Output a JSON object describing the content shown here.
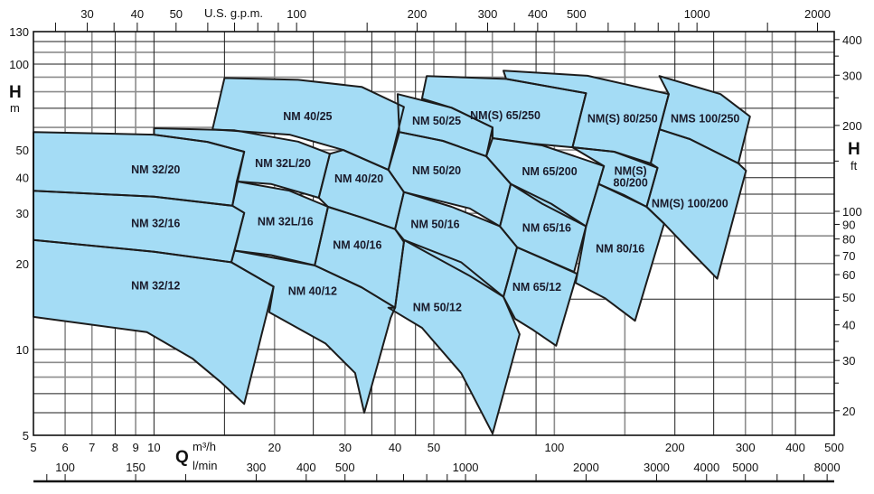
{
  "chart_data": {
    "type": "area",
    "x_scale": "log",
    "y_scale": "log",
    "xlim": [
      5,
      500
    ],
    "ylim": [
      5,
      130
    ],
    "grid": true,
    "x_axis": {
      "symbol": "Q",
      "unit": "m³/h",
      "ticks": [
        5,
        6,
        7,
        8,
        9,
        10,
        20,
        30,
        40,
        50,
        100,
        200,
        300,
        400,
        500
      ]
    },
    "x_axis_lmin": {
      "unit": "l/min",
      "ticks": [
        100,
        150,
        300,
        400,
        500,
        1000,
        2000,
        3000,
        4000,
        5000,
        8000
      ],
      "minor_ticks": [
        90,
        200,
        600,
        700,
        800,
        900,
        1500,
        6000,
        7000
      ]
    },
    "x_axis_gpm": {
      "unit": "U.S. g.p.m.",
      "ticks": [
        30,
        40,
        50,
        100,
        200,
        300,
        400,
        500,
        1000,
        2000
      ],
      "minor_ticks": [
        25,
        35,
        60,
        70,
        80,
        90,
        150,
        250,
        350,
        600,
        700,
        800,
        900,
        1500
      ]
    },
    "y_axis": {
      "symbol": "H",
      "unit": "m",
      "ticks": [
        5,
        10,
        20,
        30,
        40,
        50,
        100,
        130
      ]
    },
    "y_axis_ft": {
      "symbol": "H",
      "unit": "ft",
      "ticks": [
        20,
        30,
        40,
        50,
        60,
        70,
        80,
        90,
        100,
        200,
        300,
        400
      ],
      "minor_ticks": [
        25,
        35,
        45,
        150,
        250,
        350
      ]
    },
    "grid_lines": {
      "dark_q": [
        8,
        10,
        15,
        25,
        35,
        45,
        60,
        90,
        200,
        250,
        400
      ],
      "light_q": [
        6,
        7,
        9,
        20,
        30,
        40,
        50,
        70,
        100,
        150,
        300,
        350
      ],
      "dark_h": [
        6,
        7,
        10,
        15,
        35,
        40,
        45,
        70,
        100,
        120
      ],
      "light_h": [
        8,
        9,
        20,
        25,
        30,
        50,
        60,
        80,
        90,
        110
      ]
    },
    "colors": {
      "fill": "#a4dcf5",
      "outline": "#1c1c1c",
      "grid_dark": "#1e1e1e",
      "grid_light": "#8c8c8c"
    },
    "series": [
      {
        "name": "NM 32/20",
        "label": [
          10.1,
          42.6
        ],
        "points": [
          [
            5,
            57.8
          ],
          [
            10,
            56.6
          ],
          [
            13.6,
            53.4
          ],
          [
            16.8,
            49.3
          ],
          [
            15.7,
            31.9
          ],
          [
            10,
            34.3
          ],
          [
            5,
            36
          ]
        ]
      },
      {
        "name": "NM 32/16",
        "label": [
          10.1,
          27.6
        ],
        "points": [
          [
            5,
            36
          ],
          [
            10,
            34.3
          ],
          [
            15.7,
            31.9
          ],
          [
            16.8,
            30.1
          ],
          [
            15.6,
            20.2
          ],
          [
            10,
            22
          ],
          [
            5,
            24.2
          ]
        ]
      },
      {
        "name": "NM 32/12",
        "label": [
          10.1,
          16.7
        ],
        "points": [
          [
            5,
            24.2
          ],
          [
            10,
            22
          ],
          [
            15.6,
            20.2
          ],
          [
            19.9,
            16.6
          ],
          [
            16.8,
            6.44
          ],
          [
            14.7,
            7.67
          ],
          [
            12.5,
            9.27
          ],
          [
            9.6,
            11.5
          ],
          [
            5,
            13
          ]
        ]
      },
      {
        "name": "NM 32L/20",
        "label": [
          21,
          44.9
        ],
        "points": [
          [
            10,
            59.6
          ],
          [
            15.9,
            58.6
          ],
          [
            22.9,
            53.5
          ],
          [
            27.5,
            48.5
          ],
          [
            25.8,
            34
          ],
          [
            19.6,
            38
          ],
          [
            16.1,
            38.8
          ],
          [
            16.8,
            49.3
          ],
          [
            13.6,
            53.4
          ],
          [
            10,
            56.6
          ]
        ]
      },
      {
        "name": "NM 32L/16",
        "label": [
          21.3,
          28
        ],
        "points": [
          [
            16.1,
            38.8
          ],
          [
            21.8,
            36
          ],
          [
            27.2,
            31.6
          ],
          [
            25.2,
            19.7
          ],
          [
            19.6,
            21.4
          ],
          [
            15.9,
            22.2
          ],
          [
            16.8,
            30.1
          ],
          [
            15.7,
            31.9
          ]
        ]
      },
      {
        "name": "NM 40/25",
        "label": [
          24.2,
          65.5
        ],
        "points": [
          [
            15,
            89.4
          ],
          [
            22.9,
            88.1
          ],
          [
            33,
            83.2
          ],
          [
            42.1,
            70.8
          ],
          [
            38.5,
            42.6
          ],
          [
            29.7,
            50
          ],
          [
            21.8,
            56.6
          ],
          [
            14,
            59.1
          ]
        ]
      },
      {
        "name": "NM 40/20",
        "label": [
          32.5,
          39.6
        ],
        "points": [
          [
            27.5,
            48.5
          ],
          [
            29.7,
            50
          ],
          [
            38.5,
            42.6
          ],
          [
            42.1,
            35.6
          ],
          [
            40,
            26.4
          ],
          [
            33,
            29
          ],
          [
            27.2,
            31.6
          ],
          [
            25.8,
            34
          ]
        ]
      },
      {
        "name": "NM 40/16",
        "label": [
          32.2,
          23.2
        ],
        "points": [
          [
            27.2,
            31.6
          ],
          [
            33,
            29
          ],
          [
            40,
            26.4
          ],
          [
            42.1,
            23.8
          ],
          [
            40,
            14
          ],
          [
            33,
            16.5
          ],
          [
            25.2,
            19.7
          ]
        ]
      },
      {
        "name": "NM 40/12",
        "label": [
          24.9,
          16
        ],
        "points": [
          [
            15.9,
            22.2
          ],
          [
            25.2,
            19.7
          ],
          [
            33,
            16.5
          ],
          [
            40,
            14
          ],
          [
            39,
            12.9
          ],
          [
            33.5,
            6
          ],
          [
            31.8,
            8.26
          ],
          [
            26.8,
            10.5
          ],
          [
            19.4,
            13.5
          ],
          [
            19.9,
            16.6
          ],
          [
            15.6,
            20.2
          ]
        ]
      },
      {
        "name": "NM 50/25",
        "label": [
          50.8,
          63.1
        ],
        "points": [
          [
            40.6,
            78.5
          ],
          [
            55.4,
            70.3
          ],
          [
            70.1,
            60
          ],
          [
            67.6,
            47.5
          ],
          [
            52.7,
            53.8
          ],
          [
            41,
            57.8
          ]
        ]
      },
      {
        "name": "NM 50/20",
        "label": [
          50.8,
          42.3
        ],
        "points": [
          [
            41,
            57.8
          ],
          [
            52.7,
            53.8
          ],
          [
            67.6,
            47.5
          ],
          [
            77.8,
            38
          ],
          [
            73.1,
            27
          ],
          [
            61.5,
            31.2
          ],
          [
            42.1,
            35.6
          ],
          [
            38.5,
            42.6
          ]
        ]
      },
      {
        "name": "NM 50/16",
        "label": [
          50.4,
          27.4
        ],
        "points": [
          [
            42.1,
            35.6
          ],
          [
            55.4,
            31.6
          ],
          [
            73.1,
            27
          ],
          [
            80.7,
            22.8
          ],
          [
            74.6,
            15.3
          ],
          [
            61.5,
            18.1
          ],
          [
            42.1,
            24.2
          ],
          [
            40,
            26.4
          ]
        ]
      },
      {
        "name": "NM 50/12",
        "label": [
          51,
          14
        ],
        "points": [
          [
            42.1,
            24.2
          ],
          [
            58.5,
            20.2
          ],
          [
            74.6,
            15.3
          ],
          [
            81.9,
            11.3
          ],
          [
            70.1,
            5.07
          ],
          [
            58.5,
            8.26
          ],
          [
            46.7,
            11.9
          ],
          [
            38.5,
            14
          ],
          [
            40,
            14
          ],
          [
            42.1,
            23.8
          ]
        ]
      },
      {
        "name": "NM(S) 65/250",
        "label": [
          75.4,
          65.9
        ],
        "points": [
          [
            48,
            90.8
          ],
          [
            75.8,
            88.7
          ],
          [
            120,
            79.1
          ],
          [
            111,
            51.1
          ],
          [
            88.5,
            52.6
          ],
          [
            70.1,
            55
          ],
          [
            70.1,
            60
          ],
          [
            55.4,
            70.3
          ],
          [
            46.7,
            75.7
          ]
        ]
      },
      {
        "name": "NM 65/200",
        "label": [
          97.3,
          42
        ],
        "points": [
          [
            70.1,
            55
          ],
          [
            93.3,
            51.9
          ],
          [
            133,
            43.9
          ],
          [
            120,
            27
          ],
          [
            93.3,
            32.4
          ],
          [
            77.8,
            38
          ],
          [
            67.6,
            47.5
          ]
        ]
      },
      {
        "name": "NM 65/16",
        "label": [
          95.7,
          26.6
        ],
        "points": [
          [
            77.8,
            38
          ],
          [
            98.2,
            32.4
          ],
          [
            120,
            27
          ],
          [
            112,
            18.7
          ],
          [
            93.3,
            20.9
          ],
          [
            80.7,
            22.8
          ],
          [
            73.1,
            27
          ]
        ]
      },
      {
        "name": "NM 65/12",
        "label": [
          90.4,
          16.5
        ],
        "points": [
          [
            80.7,
            22.8
          ],
          [
            98.2,
            20.2
          ],
          [
            114,
            18.4
          ],
          [
            101,
            10.3
          ],
          [
            88.5,
            11.7
          ],
          [
            79.8,
            12.8
          ],
          [
            74.6,
            15.3
          ]
        ]
      },
      {
        "name": "NM(S) 80/250",
        "label": [
          148,
          64.4
        ],
        "points": [
          [
            74.6,
            94.8
          ],
          [
            121,
            91
          ],
          [
            193,
            78.5
          ],
          [
            174,
            44.9
          ],
          [
            141,
            49.3
          ],
          [
            111,
            51.1
          ],
          [
            120,
            79.1
          ],
          [
            75.8,
            88.7
          ]
        ]
      },
      {
        "name": "NM(S) 80/200",
        "label_lines": [
          "NM(S)",
          "80/200"
        ],
        "label": [
          155,
          40.2
        ],
        "points": [
          [
            111,
            51.1
          ],
          [
            141,
            49.3
          ],
          [
            181,
            43.3
          ],
          [
            170,
            31.6
          ],
          [
            149,
            34.8
          ],
          [
            129,
            38
          ],
          [
            133,
            43.9
          ]
        ]
      },
      {
        "name": "NM 80/16",
        "label": [
          146,
          22.5
        ],
        "points": [
          [
            129,
            38
          ],
          [
            170,
            31.6
          ],
          [
            188,
            27.6
          ],
          [
            159,
            12.6
          ],
          [
            134,
            15.1
          ],
          [
            113,
            17.1
          ],
          [
            120,
            27
          ]
        ]
      },
      {
        "name": "NMS 100/250",
        "label": [
          238,
          64.4
        ],
        "points": [
          [
            183,
            90.8
          ],
          [
            260,
            78.5
          ],
          [
            308,
            65.5
          ],
          [
            288,
            44.9
          ],
          [
            218,
            54.6
          ],
          [
            183,
            59.1
          ],
          [
            193,
            78.5
          ]
        ]
      },
      {
        "name": "NM(S) 100/200",
        "label": [
          218,
          32.4
        ],
        "points": [
          [
            183,
            59.1
          ],
          [
            218,
            54.6
          ],
          [
            288,
            44.9
          ],
          [
            301,
            42.3
          ],
          [
            255,
            17.7
          ],
          [
            218,
            22.2
          ],
          [
            188,
            27.6
          ],
          [
            170,
            31.6
          ],
          [
            181,
            43.3
          ],
          [
            174,
            44.9
          ]
        ]
      }
    ]
  }
}
